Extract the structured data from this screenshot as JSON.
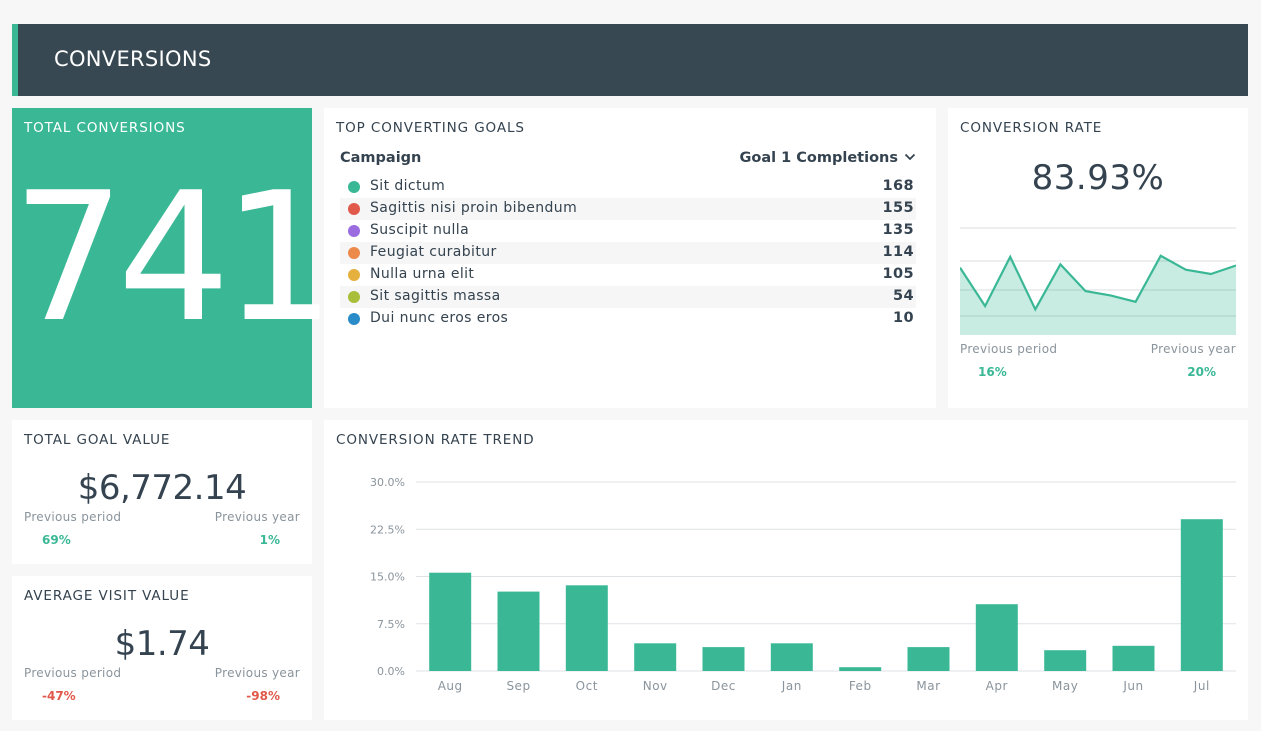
{
  "header": {
    "title": "CONVERSIONS"
  },
  "total_conversions": {
    "title": "TOTAL CONVERSIONS",
    "value": "741"
  },
  "top_goals": {
    "title": "TOP CONVERTING GOALS",
    "col_campaign": "Campaign",
    "col_metric": "Goal 1 Completions",
    "rows": [
      {
        "name": "Sit dictum",
        "value": "168",
        "color": "#3ab896"
      },
      {
        "name": "Sagittis nisi proin bibendum",
        "value": "155",
        "color": "#e0594b"
      },
      {
        "name": "Suscipit nulla",
        "value": "135",
        "color": "#9b6be0"
      },
      {
        "name": "Feugiat curabitur",
        "value": "114",
        "color": "#ec8a4a"
      },
      {
        "name": "Nulla urna elit",
        "value": "105",
        "color": "#e5b03e"
      },
      {
        "name": "Sit sagittis massa",
        "value": "54",
        "color": "#a9bf3a"
      },
      {
        "name": "Dui nunc eros eros",
        "value": "10",
        "color": "#2a8bc9"
      }
    ]
  },
  "conversion_rate": {
    "title": "CONVERSION RATE",
    "value": "83.93%",
    "sparkline": [
      0.63,
      0.27,
      0.73,
      0.24,
      0.66,
      0.41,
      0.37,
      0.31,
      0.74,
      0.61,
      0.57,
      0.65
    ],
    "prev_period_label": "Previous period",
    "prev_period_value": "16%",
    "prev_year_label": "Previous year",
    "prev_year_value": "20%"
  },
  "total_goal_value": {
    "title": "TOTAL GOAL VALUE",
    "value": "$6,772.14",
    "prev_period_label": "Previous period",
    "prev_period_value": "69%",
    "prev_year_label": "Previous year",
    "prev_year_value": "1%"
  },
  "average_visit_value": {
    "title": "AVERAGE VISIT VALUE",
    "value": "$1.74",
    "prev_period_label": "Previous period",
    "prev_period_value": "-47%",
    "prev_year_label": "Previous year",
    "prev_year_value": "-98%"
  },
  "colors": {
    "accent": "#3ab896",
    "header_bg": "#374853",
    "negative": "#e0594b"
  },
  "chart_data": {
    "type": "bar",
    "title": "CONVERSION RATE TREND",
    "categories": [
      "Aug",
      "Sep",
      "Oct",
      "Nov",
      "Dec",
      "Jan",
      "Feb",
      "Mar",
      "Apr",
      "May",
      "Jun",
      "Jul"
    ],
    "values": [
      15.6,
      12.6,
      13.6,
      4.4,
      3.8,
      4.4,
      0.6,
      3.8,
      10.6,
      3.3,
      4.0,
      24.1
    ],
    "ylim": [
      0,
      30
    ],
    "yticks": [
      "0.0%",
      "7.5%",
      "15.0%",
      "22.5%",
      "30.0%"
    ],
    "ytick_values": [
      0,
      7.5,
      15,
      22.5,
      30
    ],
    "grid": true,
    "color": "#3ab896"
  }
}
